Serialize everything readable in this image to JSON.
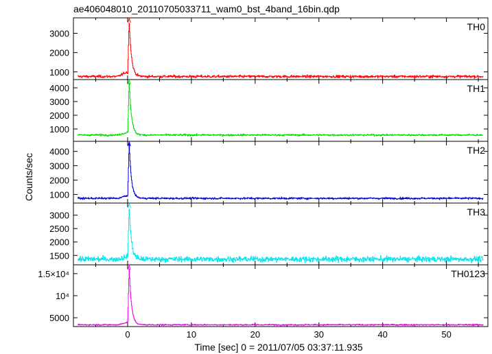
{
  "chart_data": {
    "type": "line",
    "title": "ae406048010_20110705033711_wam0_bst_4band_16bin.qdp",
    "xlabel": "Time [sec] 0 = 2011/07/05 03:37:11.935",
    "ylabel": "Counts/sec",
    "xlim": [
      -8.5,
      56.5
    ],
    "x_ticks": [
      0,
      10,
      20,
      30,
      40,
      50
    ],
    "x_tick_labels": [
      "0",
      "10",
      "20",
      "30",
      "40",
      "50"
    ],
    "x_start": -7.8,
    "x_end": 55.8,
    "x_step": 0.0625,
    "burst": {
      "onset": 0.0,
      "peak_time": 0.25,
      "decay": 0.35
    },
    "panels": [
      {
        "name": "TH0",
        "color": "#ff0000",
        "ylim": [
          600,
          3800
        ],
        "baseline": 760,
        "noise": 45,
        "pre_rise": 250,
        "peak": 3700,
        "y_ticks": [
          1000,
          2000,
          3000
        ],
        "y_tick_labels": [
          "1000",
          "2000",
          "3000"
        ]
      },
      {
        "name": "TH1",
        "color": "#00dd00",
        "ylim": [
          100,
          4600
        ],
        "baseline": 560,
        "noise": 45,
        "pre_rise": 200,
        "peak": 4500,
        "y_ticks": [
          1000,
          2000,
          3000,
          4000
        ],
        "y_tick_labels": [
          "1000",
          "2000",
          "3000",
          "4000"
        ]
      },
      {
        "name": "TH2",
        "color": "#0000cc",
        "ylim": [
          400,
          4700
        ],
        "baseline": 730,
        "noise": 45,
        "pre_rise": 200,
        "peak": 4600,
        "y_ticks": [
          1000,
          2000,
          3000,
          4000
        ],
        "y_tick_labels": [
          "1000",
          "2000",
          "3000",
          "4000"
        ]
      },
      {
        "name": "TH3",
        "color": "#00e5ee",
        "ylim": [
          1150,
          3450
        ],
        "baseline": 1360,
        "noise": 70,
        "pre_rise": 100,
        "peak": 3300,
        "y_ticks": [
          1500,
          2000,
          2500,
          3000
        ],
        "y_tick_labels": [
          "1500",
          "2000",
          "2500",
          "3000"
        ]
      },
      {
        "name": "TH0123",
        "color": "#ee00ee",
        "ylim": [
          3000,
          17000
        ],
        "baseline": 3400,
        "noise": 100,
        "pre_rise": 600,
        "peak": 16500,
        "y_ticks": [
          5000,
          10000,
          15000
        ],
        "y_tick_labels": [
          "5000",
          "10⁴",
          "1.5×10⁴"
        ]
      }
    ]
  }
}
